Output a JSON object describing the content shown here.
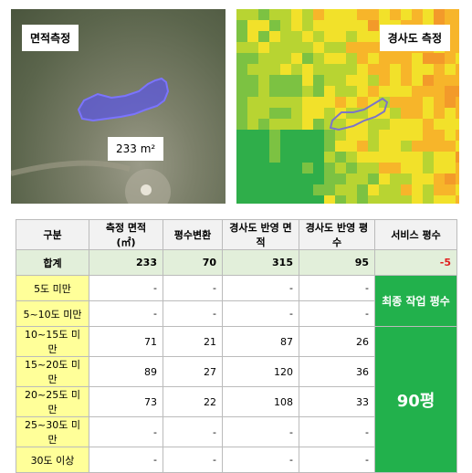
{
  "left_image": {
    "label": "면적측정",
    "area_label": "233 m²"
  },
  "right_image": {
    "label": "경사도 측정"
  },
  "table": {
    "header": [
      "구분",
      "측정 면적 (㎡)",
      "평수변환",
      "경사도 반영 면적",
      "경사도 반영 평수",
      "서비스 평수"
    ],
    "total": [
      "합계",
      "233",
      "70",
      "315",
      "95",
      "-5"
    ],
    "rows": [
      [
        "5도 미만",
        "-",
        "-",
        "-",
        "-"
      ],
      [
        "5~10도 미만",
        "-",
        "-",
        "-",
        "-"
      ],
      [
        "10~15도 미만",
        "71",
        "21",
        "87",
        "26"
      ],
      [
        "15~20도 미만",
        "89",
        "27",
        "120",
        "36"
      ],
      [
        "20~25도 미만",
        "73",
        "22",
        "108",
        "33"
      ],
      [
        "25~30도 미만",
        "-",
        "-",
        "-",
        "-"
      ],
      [
        "30도 이상",
        "-",
        "-",
        "-",
        "-"
      ]
    ],
    "final_label": "최종 작업 평수",
    "final_value": "90평"
  }
}
